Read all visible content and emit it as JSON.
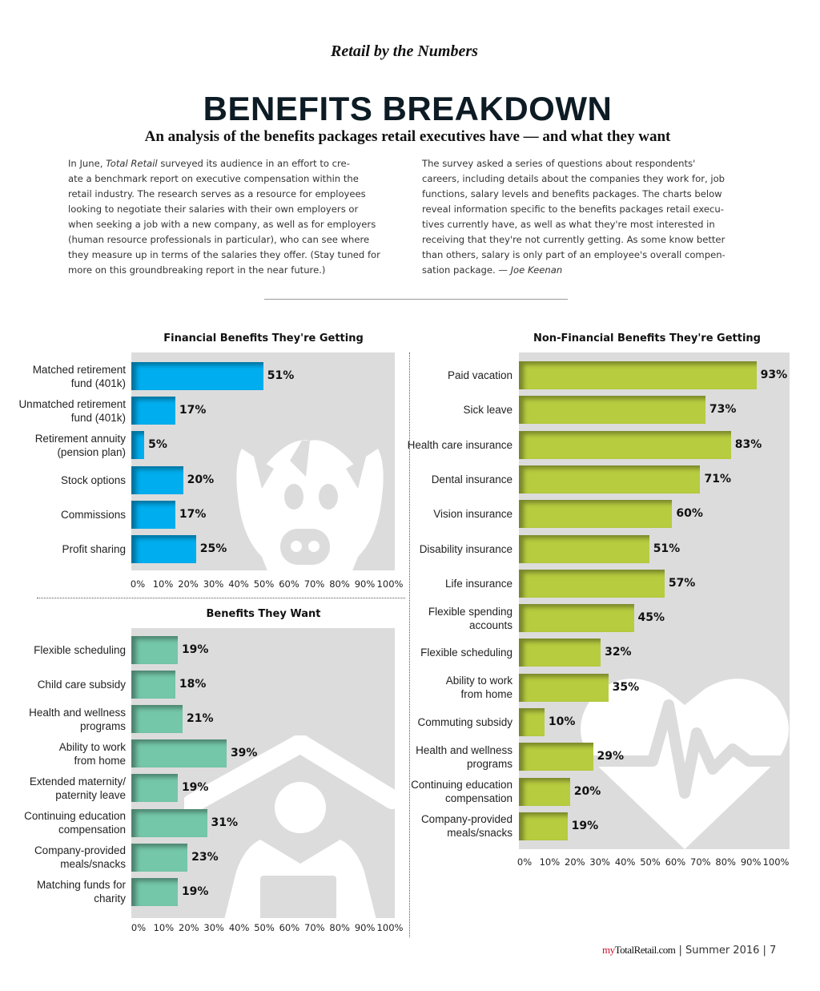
{
  "header": {
    "kicker": "Retail by the Numbers",
    "title": "BENEFITS BREAKDOWN",
    "subtitle": "An analysis of the benefits packages retail executives have — and what they want"
  },
  "intro": {
    "left_prefix": "In June, ",
    "left_italic": "Total Retail",
    "left_rest": " surveyed its audience in an effort to cre-\nate a benchmark report on executive compensation within the\nretail industry. The research serves as a resource for employees\nlooking to negotiate their salaries with their own employers or\nwhen seeking a job with a new company, as well as for employers\n(human resource professionals in particular), who can see where\nthey measure up in terms of the salaries they offer. (Stay tuned for\nmore on this groundbreaking report in the near future.)",
    "right_text": "    The survey asked a series of questions about respondents'\ncareers, including details about the companies they work for, job\nfunctions, salary levels and benefits packages. The charts below\nreveal information specific to the benefits packages retail execu-\ntives currently have, as well as what they're most interested in\nreceiving that they're not currently getting. As some know better\nthan others, salary is only part of an employee's overall compen-\nsation package. — ",
    "right_author": "Joe Keenan"
  },
  "footer": {
    "brand_my": "my",
    "brand_rest": "TotalRetail.com",
    "sep": " |  ",
    "issue": "Summer 2016",
    "sep2": " |  ",
    "page": "7"
  },
  "colors": {
    "financial": "#00aeef",
    "non_financial": "#b8cc3f",
    "want": "#74c7a9",
    "plot_bg": "#dcdcdc"
  },
  "chart_data": [
    {
      "id": "financial",
      "type": "bar",
      "orientation": "horizontal",
      "title": "Financial Benefits They're Getting",
      "background_icon": "piggy-bank-icon",
      "categories": [
        "Matched retirement\nfund (401k)",
        "Unmatched retirement\nfund (401k)",
        "Retirement annuity\n(pension plan)",
        "Stock options",
        "Commissions",
        "Profit sharing"
      ],
      "values": [
        51,
        17,
        5,
        20,
        17,
        25
      ],
      "value_labels": [
        "51%",
        "17%",
        "5%",
        "20%",
        "17%",
        "25%"
      ],
      "xlim": [
        0,
        100
      ],
      "xticks": [
        "0%",
        "10%",
        "20%",
        "30%",
        "40%",
        "50%",
        "60%",
        "70%",
        "80%",
        "90%",
        "100%"
      ],
      "unit": "%"
    },
    {
      "id": "non_financial",
      "type": "bar",
      "orientation": "horizontal",
      "title": "Non-Financial Benefits They're Getting",
      "background_icon": "heart-heartbeat-icon",
      "categories": [
        "Paid vacation",
        "Sick leave",
        "Health care insurance",
        "Dental insurance",
        "Vision insurance",
        "Disability insurance",
        "Life insurance",
        "Flexible spending\naccounts",
        "Flexible scheduling",
        "Ability to work\nfrom home",
        "Commuting subsidy",
        "Health and wellness\nprograms",
        "Continuing education\ncompensation",
        "Company-provided\nmeals/snacks"
      ],
      "values": [
        93,
        73,
        83,
        71,
        60,
        51,
        57,
        45,
        32,
        35,
        10,
        29,
        20,
        19
      ],
      "value_labels": [
        "93%",
        "73%",
        "83%",
        "71%",
        "60%",
        "51%",
        "57%",
        "45%",
        "32%",
        "35%",
        "10%",
        "29%",
        "20%",
        "19%"
      ],
      "xlim": [
        0,
        100
      ],
      "xticks": [
        "0%",
        "10%",
        "20%",
        "30%",
        "40%",
        "50%",
        "60%",
        "70%",
        "80%",
        "90%",
        "100%"
      ],
      "unit": "%"
    },
    {
      "id": "want",
      "type": "bar",
      "orientation": "horizontal",
      "title": "Benefits They Want",
      "background_icon": "person-at-home-icon",
      "categories": [
        "Flexible scheduling",
        "Child care subsidy",
        "Health and wellness\nprograms",
        "Ability to work\nfrom home",
        "Extended maternity/\npaternity leave",
        "Continuing education\ncompensation",
        "Company-provided\nmeals/snacks",
        "Matching funds for\ncharity"
      ],
      "values": [
        19,
        18,
        21,
        39,
        19,
        31,
        23,
        19
      ],
      "value_labels": [
        "19%",
        "18%",
        "21%",
        "39%",
        "19%",
        "31%",
        "23%",
        "19%"
      ],
      "xlim": [
        0,
        100
      ],
      "xticks": [
        "0%",
        "10%",
        "20%",
        "30%",
        "40%",
        "50%",
        "60%",
        "70%",
        "80%",
        "90%",
        "100%"
      ],
      "unit": "%"
    }
  ]
}
